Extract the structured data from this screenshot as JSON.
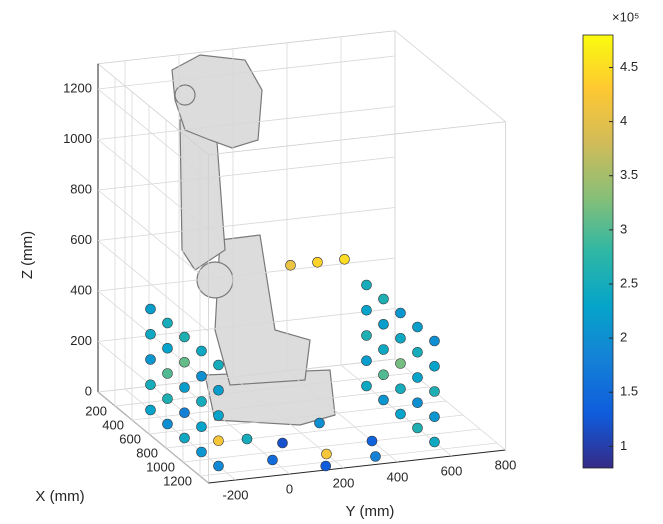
{
  "chart_data": {
    "type": "scatter3d",
    "xlabel": "X (mm)",
    "ylabel": "Y (mm)",
    "zlabel": "Z (mm)",
    "xlim": [
      0,
      1300
    ],
    "ylim": [
      -300,
      800
    ],
    "zlim": [
      0,
      1300
    ],
    "xticks": [
      200,
      400,
      600,
      800,
      1000,
      1200
    ],
    "yticks": [
      -200,
      0,
      200,
      400,
      600,
      800
    ],
    "zticks": [
      0,
      200,
      400,
      600,
      800,
      1000,
      1200
    ],
    "grid": true,
    "colorbar": {
      "clim": [
        80000,
        480000
      ],
      "exponent_label": "×10⁵",
      "ticks": [
        {
          "value": 100000,
          "label": "1"
        },
        {
          "value": 150000,
          "label": "1.5"
        },
        {
          "value": 200000,
          "label": "2"
        },
        {
          "value": 250000,
          "label": "2.5"
        },
        {
          "value": 300000,
          "label": "3"
        },
        {
          "value": 350000,
          "label": "3.5"
        },
        {
          "value": 400000,
          "label": "4"
        },
        {
          "value": 450000,
          "label": "4.5"
        }
      ]
    },
    "x": [
      300,
      300,
      300,
      300,
      300,
      500,
      500,
      500,
      500,
      500,
      700,
      700,
      700,
      700,
      700,
      900,
      900,
      900,
      900,
      900,
      1100,
      1100,
      1100,
      1100,
      1100,
      300,
      300,
      300,
      300,
      300,
      500,
      500,
      500,
      500,
      500,
      700,
      700,
      700,
      700,
      700,
      900,
      900,
      900,
      900,
      900,
      1100,
      1100,
      1100,
      1100,
      1100,
      200,
      200,
      200,
      1100,
      1100,
      900,
      1250,
      700,
      1000,
      1200,
      800
    ],
    "y": [
      -200,
      -200,
      -200,
      -200,
      -200,
      -200,
      -200,
      -200,
      -200,
      -200,
      -200,
      -200,
      -200,
      -200,
      -200,
      -200,
      -200,
      -200,
      -200,
      -200,
      -200,
      -200,
      -200,
      -200,
      -200,
      600,
      600,
      600,
      600,
      600,
      600,
      600,
      600,
      600,
      600,
      600,
      600,
      600,
      600,
      600,
      600,
      600,
      600,
      600,
      600,
      600,
      600,
      600,
      600,
      600,
      350,
      450,
      550,
      0,
      200,
      100,
      150,
      300,
      400,
      350,
      0
    ],
    "z": [
      0,
      100,
      200,
      300,
      400,
      0,
      100,
      200,
      300,
      400,
      0,
      100,
      200,
      300,
      400,
      0,
      100,
      200,
      300,
      400,
      0,
      100,
      200,
      300,
      400,
      0,
      100,
      200,
      300,
      400,
      0,
      100,
      200,
      300,
      400,
      0,
      100,
      200,
      300,
      400,
      0,
      100,
      200,
      300,
      400,
      0,
      100,
      200,
      300,
      400,
      480,
      480,
      480,
      0,
      0,
      0,
      0,
      0,
      0,
      0,
      0
    ],
    "values": [
      230000,
      250000,
      210000,
      240000,
      220000,
      200000,
      260000,
      300000,
      230000,
      250000,
      240000,
      180000,
      220000,
      310000,
      260000,
      210000,
      230000,
      250000,
      200000,
      240000,
      190000,
      420000,
      230000,
      220000,
      250000,
      240000,
      220000,
      260000,
      230000,
      250000,
      210000,
      300000,
      240000,
      220000,
      260000,
      230000,
      250000,
      320000,
      240000,
      210000,
      260000,
      200000,
      230000,
      250000,
      220000,
      240000,
      210000,
      260000,
      230000,
      200000,
      410000,
      440000,
      450000,
      150000,
      420000,
      120000,
      130000,
      200000,
      140000,
      180000,
      250000
    ]
  }
}
